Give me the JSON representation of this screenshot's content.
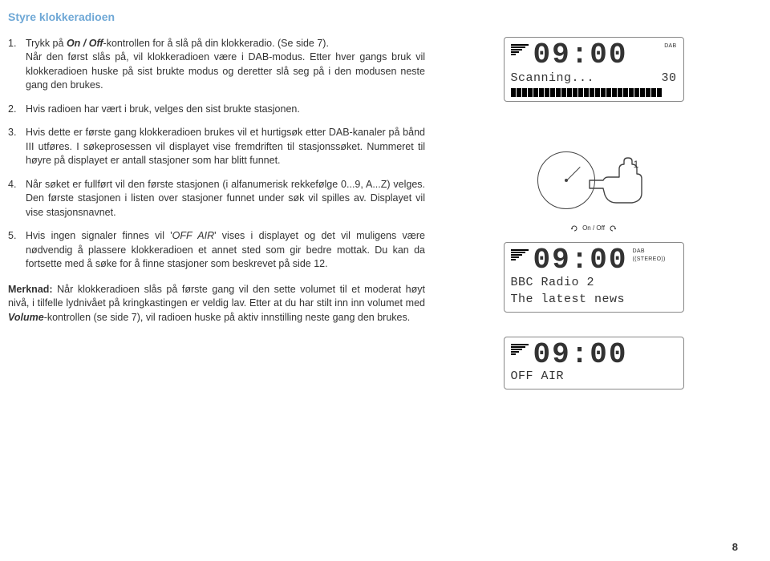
{
  "title": "Styre klokkeradioen",
  "steps": [
    {
      "num": "1.",
      "html": "Trykk på <span class='bi'>On / Off</span>-kontrollen for å slå på din klokkeradio. (Se side 7).<br>Når den først slås på, vil klokkeradioen være i DAB-modus. Etter hver gangs bruk vil klokkeradioen huske på sist brukte modus og deretter slå seg på i den modusen neste gang den brukes."
    },
    {
      "num": "2.",
      "html": "Hvis radioen har vært i bruk, velges den sist brukte stasjonen."
    },
    {
      "num": "3.",
      "html": "Hvis dette er første gang klokkeradioen brukes vil et hurtigsøk etter DAB-kanaler på bånd III utføres. I søkeprosessen vil displayet vise fremdriften til stasjonssøket. Nummeret til høyre på displayet er antall stasjoner som har blitt funnet."
    },
    {
      "num": "4.",
      "html": "Når søket er fullført vil den første stasjonen (i alfanumerisk rekkefølge 0...9, A...Z) velges. Den første stasjonen i listen over stasjoner funnet under søk vil spilles av. Displayet vil vise stasjonsnavnet."
    },
    {
      "num": "5.",
      "html": "Hvis ingen signaler finnes vil '<span style='font-style:italic'>OFF AIR</span>' vises i displayet og det vil muligens være nødvendig å plassere klokkeradioen et annet sted som gir bedre mottak. Du kan da fortsette med å søke for å finne stasjoner som beskrevet på side 12."
    }
  ],
  "merknad_label": "Merknad:",
  "merknad": " Når klokkeradioen slås på første gang vil den sette volumet til et moderat høyt nivå, i tilfelle lydnivået på kringkastingen er veldig lav. Etter at du har stilt inn inn volumet med <span class='bi'>Volume</span>-kontrollen (se side 7), vil radioen huske på aktiv innstilling neste gang den brukes.",
  "page_number": "8",
  "dial": {
    "badge": "1",
    "onoff": "On / Off"
  },
  "lcd1": {
    "time": "09:00",
    "mode": "DAB",
    "line2_left": "Scanning...",
    "line2_right": "30",
    "progress_segments": 27
  },
  "lcd2": {
    "time": "09:00",
    "mode": "DAB ((STEREO))",
    "line2": "BBC Radio 2",
    "line3": "The latest news"
  },
  "lcd3": {
    "time": "09:00",
    "mode": "",
    "line2": "OFF AIR",
    "line3": ""
  },
  "colors": {
    "title": "#6fa8d6",
    "text": "#333333",
    "background": "#ffffff"
  }
}
